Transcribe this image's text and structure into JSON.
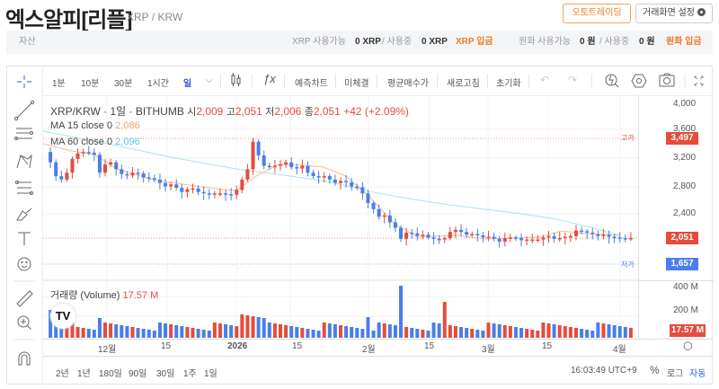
{
  "header": {
    "title": "엑스알피[리플]",
    "subtitle": "XRP / KRW",
    "auto_trading_button": "오토트레이딩",
    "settings_button": "거래화면 설정"
  },
  "asset_bar": {
    "label": "자산",
    "xrp_available_label": "XRP 사용가능",
    "xrp_available_value": "0 XRP",
    "xrp_in_use_label": "/ 사용중",
    "xrp_in_use_value": "0 XRP",
    "xrp_deposit": "XRP 입금",
    "krw_available_label": "원화 사용가능",
    "krw_available_value": "0 원",
    "krw_in_use_label": "/ 사용중",
    "krw_in_use_value": "0 원",
    "krw_deposit": "원화 입금"
  },
  "toolbar": {
    "intervals": [
      "1분",
      "10분",
      "30분",
      "1시간",
      "일"
    ],
    "active_interval": "일",
    "buttons": [
      "예측차트",
      "미체결",
      "평균매수가",
      "새로고침",
      "초기화"
    ]
  },
  "legend": {
    "symbol": "XRP/KRW · 1일 · BITHUMB",
    "open_label": "시",
    "open": "2,009",
    "high_label": "고",
    "high": "2,051",
    "low_label": "저",
    "low": "2,006",
    "close_label": "종",
    "close": "2,051",
    "change": "+42 (+2.09%)",
    "ma15_label": "MA 15 close 0",
    "ma15_value": "2,086",
    "ma60_label": "MA 60 close 0",
    "ma60_value": "2,096",
    "volume_label": "거래량 (Volume)",
    "volume_value": "17.57 M"
  },
  "price_axis": {
    "ticks": [
      "4,000",
      "3,600",
      "3,200",
      "2,800",
      "2,400"
    ],
    "high_tag_label": "고가",
    "high_tag": "3,497",
    "current_tag": "2,051",
    "low_tag_label": "저가",
    "low_tag": "1,657",
    "volume_ticks": [
      "400 M",
      "200 M"
    ],
    "volume_tag": "17.57 M"
  },
  "time_axis": {
    "ticks": [
      "12월",
      "15",
      "2026",
      "15",
      "2월",
      "15",
      "3월",
      "15",
      "4월"
    ]
  },
  "bottom_bar": {
    "ranges": [
      "2년",
      "1년",
      "180일",
      "90일",
      "30일",
      "1주",
      "1일"
    ],
    "clock": "16:03:49 UTC+9",
    "percent": "%",
    "log": "로그",
    "auto": "자동"
  },
  "colors": {
    "up": "#e54c3c",
    "down": "#4a7ee8",
    "ma15": "#f7a26b",
    "ma60": "#8fd6e8",
    "accent": "#f07a20"
  },
  "chart_data": {
    "type": "candlestick",
    "title": "XRP/KRW · 1일 · BITHUMB",
    "x_labels": [
      "12월",
      "15",
      "2026",
      "15",
      "2월",
      "15",
      "3월",
      "15",
      "4월"
    ],
    "y_range": [
      1600,
      4000
    ],
    "high": 3497,
    "low": 1657,
    "last": 2051,
    "ma15_last": 2086,
    "ma60_last": 2096,
    "volume_last": "17.57M",
    "volume_range": [
      0,
      400
    ]
  }
}
